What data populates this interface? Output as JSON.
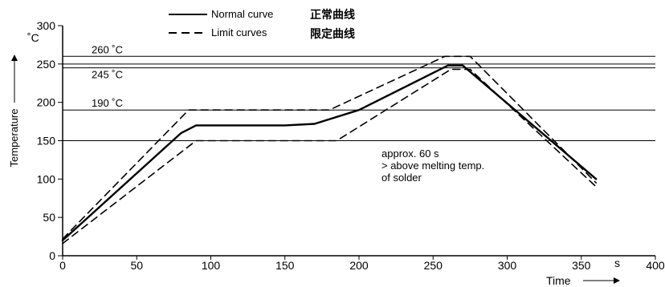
{
  "chart_data": {
    "type": "line",
    "xlabel": "Time",
    "ylabel": "Temperature",
    "x_unit": "s",
    "y_unit": "˚C",
    "xlim": [
      0,
      400
    ],
    "ylim": [
      0,
      300
    ],
    "x_ticks": [
      0,
      50,
      100,
      150,
      200,
      250,
      300,
      350,
      400
    ],
    "y_ticks": [
      0,
      50,
      100,
      150,
      200,
      250,
      300
    ],
    "legend": [
      {
        "style": "solid",
        "label": "Normal curve",
        "label_cn": "正常曲线"
      },
      {
        "style": "dashed",
        "label": "Limit curves",
        "label_cn": "限定曲线"
      }
    ],
    "reference_lines": [
      {
        "y": 260,
        "label": "260 ˚C"
      },
      {
        "y": 250,
        "label": ""
      },
      {
        "y": 245,
        "label": "245 ˚C"
      },
      {
        "y": 190,
        "label": "190 ˚C"
      },
      {
        "y": 150,
        "label": ""
      }
    ],
    "series": [
      {
        "style": "solid",
        "width": 2.4,
        "x": [
          0,
          80,
          90,
          150,
          170,
          200,
          260,
          270,
          360
        ],
        "y": [
          20,
          160,
          170,
          170,
          172,
          190,
          248,
          248,
          100
        ]
      },
      {
        "style": "dashed",
        "width": 1.6,
        "x": [
          0,
          85,
          180,
          258,
          275,
          360
        ],
        "y": [
          22,
          190,
          190,
          260,
          260,
          95
        ]
      },
      {
        "style": "dashed",
        "width": 1.6,
        "x": [
          0,
          90,
          185,
          262,
          275,
          360
        ],
        "y": [
          16,
          150,
          150,
          243,
          243,
          90
        ]
      }
    ],
    "annotation": [
      "approx. 60 s",
      "> above melting temp.",
      "of solder"
    ]
  }
}
